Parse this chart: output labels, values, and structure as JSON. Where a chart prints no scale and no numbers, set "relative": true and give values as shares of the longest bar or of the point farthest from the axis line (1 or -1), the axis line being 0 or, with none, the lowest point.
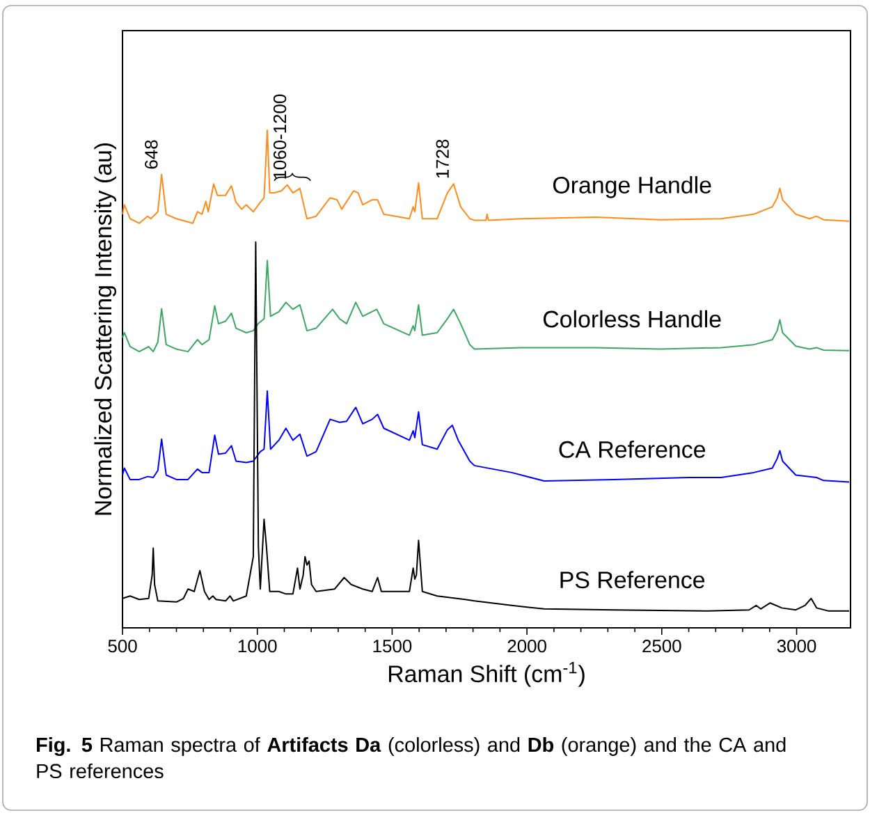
{
  "chart_data": {
    "type": "line",
    "relative": true,
    "xlabel": "Raman Shift (cm$^{-1}$)",
    "ylabel": "Normalized Scattering Intensity (au)",
    "xlim": [
      500,
      3200
    ],
    "xticks": [
      500,
      1000,
      1500,
      2000,
      2500,
      3000
    ],
    "annotations": [
      {
        "text": "648",
        "x": 648,
        "y": 0.911
      },
      {
        "text": "1060-1200",
        "x": 1130,
        "y": 0.89
      },
      {
        "text": "1728",
        "x": 1728,
        "y": 0.892
      },
      "**Fig. 5**  Raman spectra of **Artifacts Da** (colorless) and **Db** (orange) and the CA and PS references"
    ],
    "series": [
      {
        "name": "Orange Handle",
        "color": "#ff8c1a",
        "x": [
          500,
          507,
          528,
          562,
          593,
          605,
          631,
          645,
          662,
          700,
          761,
          778,
          795,
          809,
          818,
          838,
          852,
          882,
          904,
          921,
          942,
          959,
          985,
          1011,
          1025,
          1037,
          1046,
          1063,
          1089,
          1111,
          1132,
          1158,
          1184,
          1218,
          1270,
          1296,
          1313,
          1357,
          1374,
          1391,
          1426,
          1446,
          1469,
          1564,
          1578,
          1584,
          1598,
          1612,
          1667,
          1705,
          1728,
          1754,
          1788,
          1805,
          1848,
          1852,
          1857,
          1978,
          2254,
          2496,
          2720,
          2841,
          2910,
          2928,
          2938,
          2948,
          2997,
          3048,
          3074,
          3100,
          3195
        ],
        "values": [
          0.831,
          0.85,
          0.822,
          0.813,
          0.827,
          0.822,
          0.836,
          0.911,
          0.831,
          0.822,
          0.813,
          0.836,
          0.831,
          0.857,
          0.836,
          0.892,
          0.869,
          0.869,
          0.888,
          0.855,
          0.841,
          0.85,
          0.836,
          0.855,
          0.864,
          1.0,
          0.874,
          0.874,
          0.878,
          0.89,
          0.874,
          0.883,
          0.822,
          0.827,
          0.864,
          0.86,
          0.841,
          0.878,
          0.874,
          0.85,
          0.86,
          0.86,
          0.831,
          0.822,
          0.846,
          0.836,
          0.894,
          0.822,
          0.822,
          0.874,
          0.892,
          0.846,
          0.822,
          0.819,
          0.819,
          0.831,
          0.819,
          0.822,
          0.825,
          0.82,
          0.822,
          0.831,
          0.846,
          0.864,
          0.883,
          0.86,
          0.831,
          0.822,
          0.827,
          0.82,
          0.817
        ]
      },
      {
        "name": "Colorless Handle",
        "color": "#3aa862",
        "x": [
          500,
          507,
          528,
          562,
          597,
          614,
          631,
          645,
          662,
          700,
          743,
          778,
          795,
          821,
          842,
          856,
          882,
          904,
          921,
          959,
          985,
          1003,
          1025,
          1037,
          1049,
          1080,
          1106,
          1132,
          1158,
          1184,
          1218,
          1279,
          1305,
          1331,
          1365,
          1391,
          1443,
          1469,
          1564,
          1578,
          1584,
          1598,
          1612,
          1667,
          1705,
          1728,
          1754,
          1788,
          1805,
          1978,
          2254,
          2496,
          2720,
          2841,
          2910,
          2928,
          2938,
          2948,
          2997,
          3048,
          3074,
          3100,
          3195
        ],
        "values": [
          0.583,
          0.593,
          0.565,
          0.555,
          0.565,
          0.555,
          0.574,
          0.641,
          0.569,
          0.56,
          0.555,
          0.579,
          0.569,
          0.579,
          0.647,
          0.611,
          0.616,
          0.632,
          0.602,
          0.593,
          0.597,
          0.611,
          0.621,
          0.738,
          0.626,
          0.635,
          0.654,
          0.64,
          0.649,
          0.597,
          0.602,
          0.64,
          0.621,
          0.611,
          0.654,
          0.626,
          0.64,
          0.611,
          0.588,
          0.607,
          0.597,
          0.649,
          0.588,
          0.593,
          0.621,
          0.64,
          0.611,
          0.569,
          0.56,
          0.563,
          0.563,
          0.56,
          0.563,
          0.569,
          0.579,
          0.597,
          0.619,
          0.593,
          0.566,
          0.56,
          0.563,
          0.558,
          0.557
        ]
      },
      {
        "name": "CA Reference",
        "color": "#0000ff",
        "x": [
          500,
          507,
          528,
          562,
          593,
          614,
          631,
          645,
          662,
          700,
          743,
          778,
          795,
          821,
          842,
          856,
          882,
          904,
          921,
          959,
          985,
          1011,
          1025,
          1037,
          1049,
          1080,
          1106,
          1132,
          1158,
          1184,
          1218,
          1270,
          1305,
          1331,
          1365,
          1391,
          1426,
          1446,
          1469,
          1564,
          1578,
          1584,
          1598,
          1612,
          1667,
          1705,
          1723,
          1745,
          1788,
          1805,
          1943,
          2064,
          2323,
          2599,
          2720,
          2841,
          2910,
          2928,
          2938,
          2948,
          2997,
          3074,
          3100,
          3195
        ],
        "values": [
          0.307,
          0.321,
          0.298,
          0.298,
          0.304,
          0.302,
          0.316,
          0.379,
          0.307,
          0.298,
          0.298,
          0.319,
          0.312,
          0.312,
          0.387,
          0.349,
          0.351,
          0.366,
          0.335,
          0.332,
          0.335,
          0.354,
          0.359,
          0.476,
          0.359,
          0.377,
          0.401,
          0.377,
          0.389,
          0.345,
          0.354,
          0.419,
          0.413,
          0.415,
          0.443,
          0.41,
          0.419,
          0.429,
          0.401,
          0.377,
          0.396,
          0.382,
          0.434,
          0.368,
          0.359,
          0.398,
          0.407,
          0.377,
          0.335,
          0.326,
          0.312,
          0.295,
          0.298,
          0.302,
          0.302,
          0.312,
          0.321,
          0.34,
          0.356,
          0.335,
          0.307,
          0.302,
          0.296,
          0.293
        ]
      },
      {
        "name": "PS Reference",
        "color": "#000000",
        "x": [
          500,
          528,
          562,
          597,
          610,
          614,
          619,
          631,
          700,
          726,
          743,
          766,
          787,
          804,
          821,
          835,
          847,
          882,
          899,
          911,
          959,
          985,
          994,
          1004,
          1011,
          1025,
          1034,
          1046,
          1080,
          1106,
          1132,
          1149,
          1158,
          1170,
          1177,
          1184,
          1192,
          1201,
          1218,
          1287,
          1322,
          1348,
          1391,
          1426,
          1446,
          1460,
          1564,
          1578,
          1584,
          1590,
          1598,
          1612,
          1667,
          1771,
          1805,
          1943,
          2064,
          2323,
          2669,
          2824,
          2850,
          2867,
          2902,
          2945,
          2997,
          3031,
          3054,
          3074,
          3117,
          3195
        ],
        "values": [
          0.059,
          0.064,
          0.057,
          0.059,
          0.106,
          0.16,
          0.087,
          0.054,
          0.052,
          0.059,
          0.078,
          0.073,
          0.115,
          0.073,
          0.057,
          0.064,
          0.057,
          0.054,
          0.064,
          0.054,
          0.064,
          0.143,
          0.775,
          0.162,
          0.078,
          0.218,
          0.162,
          0.073,
          0.073,
          0.068,
          0.068,
          0.12,
          0.078,
          0.106,
          0.143,
          0.126,
          0.134,
          0.087,
          0.073,
          0.078,
          0.101,
          0.087,
          0.078,
          0.073,
          0.101,
          0.073,
          0.073,
          0.12,
          0.098,
          0.106,
          0.176,
          0.073,
          0.064,
          0.057,
          0.054,
          0.045,
          0.038,
          0.036,
          0.034,
          0.036,
          0.045,
          0.038,
          0.05,
          0.04,
          0.036,
          0.045,
          0.059,
          0.04,
          0.034,
          0.034
        ]
      }
    ]
  }
}
